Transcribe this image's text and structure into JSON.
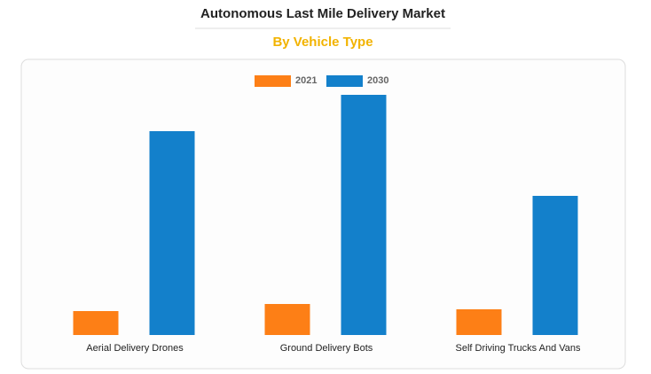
{
  "chart_data": {
    "type": "bar",
    "title": "Autonomous Last Mile Delivery Market",
    "subtitle": "By Vehicle Type",
    "categories": [
      "Aerial Delivery Drones",
      "Ground Delivery Bots",
      "Self Driving Trucks And Vans"
    ],
    "series": [
      {
        "name": "2021",
        "color": "#fd7f16",
        "values": [
          27,
          35,
          29
        ]
      },
      {
        "name": "2030",
        "color": "#1380cb",
        "values": [
          230,
          271,
          157
        ]
      }
    ]
  }
}
